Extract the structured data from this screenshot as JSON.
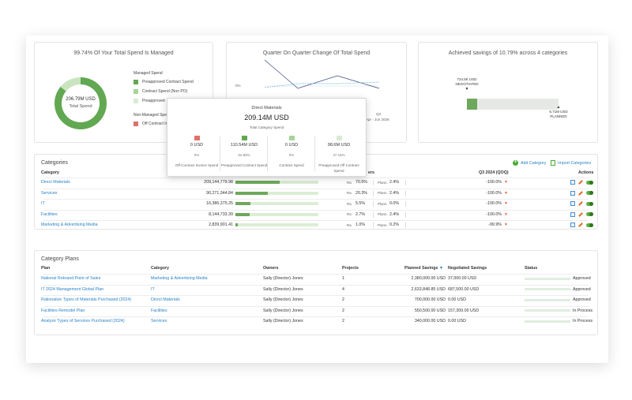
{
  "managed_panel": {
    "title": "99.74% Of Your Total Spend Is Managed",
    "donut_value": "206.79M USD",
    "donut_label": "Total Spend",
    "managed_header": "Managed Spend",
    "legend": [
      {
        "label": "Preapproved Contract Spend",
        "color": "#62a852"
      },
      {
        "label": "Contract Spend (Non PO)",
        "color": "#a8d39a"
      },
      {
        "label": "Preapproved",
        "color": "#d9ebd2"
      }
    ],
    "non_managed_header": "Non-Managed Spe",
    "non_managed_legend": [
      {
        "label": "Off Contract In",
        "color": "#e07070"
      }
    ]
  },
  "quarter_panel": {
    "title": "Quarter On Quarter Change Of Total Spend",
    "zero_label": "0%",
    "q_label": "Q3",
    "date_label": "Apr - Jun 2026",
    "sub_label": "Q"
  },
  "savings_panel": {
    "title": "Achieved savings of 10.79% across 4 categories",
    "negotiated_value": "724.5K USD",
    "negotiated_label": "NEGOTIATED",
    "planned_value": "6.71M USD",
    "planned_label": "PLANNED",
    "achieved_fraction": 0.108
  },
  "tooltip": {
    "header": "Direct Materials",
    "value": "209.14M USD",
    "subtitle": "Total Category Spend",
    "columns": [
      {
        "color": "#e07070",
        "value": "0 USD",
        "pct": "0%",
        "name": "Off-Contract Invoice Spend"
      },
      {
        "color": "#62a852",
        "value": "110.54M USD",
        "pct": "52.85%",
        "name": "Preapproved Contract Spend"
      },
      {
        "color": "#a8d39a",
        "value": "0 USD",
        "pct": "0%",
        "name": "Contract Spend"
      },
      {
        "color": "#d9ebd2",
        "value": "98.6M USD",
        "pct": "47.15%",
        "name": "Preapproved Off Contract Spend"
      }
    ]
  },
  "categories": {
    "title": "Categories",
    "add_label": "Add Category",
    "import_label": "Import Categories",
    "headers": {
      "category": "Category",
      "others": "ers",
      "q3": "Q3 2024 (QOQ)",
      "actions": "Actions"
    },
    "rows": [
      {
        "name": "Direct Materials",
        "spend": "209,144,779.98",
        "bar": 0.53,
        "ra_label": "Ra",
        "ra": "70.5%",
        "plan_label": "Plann.",
        "plan": "2.4%",
        "qoq": "-100.0%"
      },
      {
        "name": "Services",
        "spend": "90,271,344.84",
        "bar": 0.39,
        "ra_label": "Ra",
        "ra": "20.3%",
        "plan_label": "Plann.",
        "plan": "2.4%",
        "qoq": "-100.0%"
      },
      {
        "name": "IT",
        "spend": "16,386,375.25",
        "bar": 0.18,
        "ra_label": "Ra",
        "ra": "5.5%",
        "plan_label": "Plann.",
        "plan": "0.0%",
        "qoq": "-100.0%"
      },
      {
        "name": "Facilities",
        "spend": "8,144,733.39",
        "bar": 0.17,
        "ra_label": "Ra",
        "ra": "2.7%",
        "plan_label": "Plann.",
        "plan": "2.4%",
        "qoq": "-100.0%"
      },
      {
        "name": "Marketing & Advertising Media",
        "spend": "2,839,901.41",
        "bar": 0.03,
        "ra_label": "Ra",
        "ra": "1.0%",
        "plan_label": "Plann.",
        "plan": "0.2%",
        "qoq": "-99.9%"
      }
    ]
  },
  "plans": {
    "title": "Category Plans",
    "headers": {
      "plan": "Plan",
      "category": "Category",
      "owners": "Owners",
      "projects": "Projects",
      "planned": "Planned Savings",
      "negotiated": "Negotiated Savings",
      "status": "Status"
    },
    "rows": [
      {
        "plan": "National Rebrand Point of Sales",
        "category": "Marketing & Advertising Media",
        "owners": "Sally (Director) Jones",
        "projects": "1",
        "planned": "2,380,000.00 USD",
        "negotiated": "37,000.00 USD",
        "status": "Approved"
      },
      {
        "plan": "IT 2024 Management Global Plan",
        "category": "IT",
        "owners": "Sally (Director) Jones",
        "projects": "4",
        "planned": "2,633,848.85 USD",
        "negotiated": "687,500.00 USD",
        "status": "Approved"
      },
      {
        "plan": "Rationalize Types of Materials Purchased (2024)",
        "category": "Direct Materials",
        "owners": "Sally (Director) Jones",
        "projects": "2",
        "planned": "700,000.00 USD",
        "negotiated": "0.00 USD",
        "status": "Approved"
      },
      {
        "plan": "Facilities Remodel Plan",
        "category": "Facilities",
        "owners": "Sally (Director) Jones",
        "projects": "2",
        "planned": "550,500.00 USD",
        "negotiated": "157,300.00 USD",
        "status": "In Process"
      },
      {
        "plan": "Analyze Types of Services Purchased (2024)",
        "category": "Services",
        "owners": "Sally (Director) Jones",
        "projects": "2",
        "planned": "340,000.00 USD",
        "negotiated": "0.00 USD",
        "status": "In Process"
      }
    ]
  }
}
